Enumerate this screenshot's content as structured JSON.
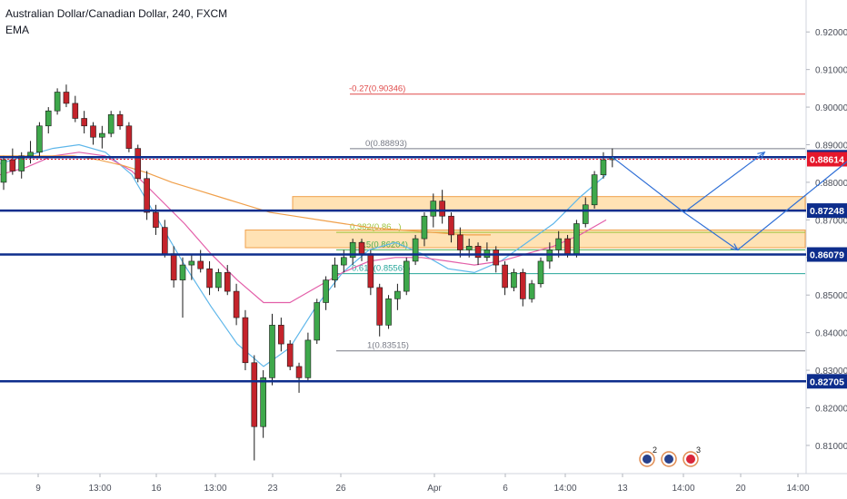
{
  "header": {
    "symbol_line": "Australian Dollar/Canadian Dollar, 240, FXCM",
    "indicator": "EMA"
  },
  "chart_data": {
    "type": "candlestick",
    "y_range": [
      0.8025,
      0.9285
    ],
    "price_ticks": [
      "0.92000",
      "0.91000",
      "0.90000",
      "0.89000",
      "0.88000",
      "0.87000",
      "0.86000",
      "0.85000",
      "0.84000",
      "0.83000",
      "0.82000",
      "0.81000"
    ],
    "date_ticks": [
      "9",
      "13:00",
      "16",
      "13:00",
      "23",
      "26",
      "Apr",
      "6",
      "14:00",
      "13",
      "14:00",
      "20",
      "14:00"
    ],
    "horizontal_levels": [
      {
        "label": "0.88667",
        "price": 0.88667,
        "color": "#0d2d8c",
        "style": "solid"
      },
      {
        "label": "0.88614",
        "price": 0.88614,
        "color": "#e5172b",
        "style": "dotted"
      },
      {
        "label": "0.87248",
        "price": 0.87248,
        "color": "#0d2d8c",
        "style": "solid"
      },
      {
        "label": "0.86079",
        "price": 0.86079,
        "color": "#0d2d8c",
        "style": "solid"
      },
      {
        "label": "0.82705",
        "price": 0.82705,
        "color": "#0d2d8c",
        "style": "solid"
      }
    ],
    "fibonacci": [
      {
        "label": "-0.27(0.90346)",
        "price": 0.90346,
        "color": "#e04a4a"
      },
      {
        "label": "0(0.88893)",
        "price": 0.88893,
        "color": "#787b86"
      },
      {
        "label": "0.382(0.86...)",
        "price": 0.86669,
        "color": "#9ec43c"
      },
      {
        "label": "0.5(0.86204)",
        "price": 0.86204,
        "color": "#4caf50"
      },
      {
        "label": "0.618(0.85569)",
        "price": 0.85569,
        "color": "#26a69a"
      },
      {
        "label": "1(0.83515)",
        "price": 0.83515,
        "color": "#787b86"
      }
    ],
    "zones": [
      {
        "name": "upper-zone",
        "low": 0.8724,
        "high": 0.8762,
        "color": "#ffd89b"
      },
      {
        "name": "lower-zone",
        "low": 0.8626,
        "high": 0.8673,
        "color": "#ffd89b"
      }
    ],
    "candles": [
      [
        0.88,
        0.887,
        0.878,
        0.886
      ],
      [
        0.886,
        0.889,
        0.882,
        0.883
      ],
      [
        0.883,
        0.888,
        0.881,
        0.887
      ],
      [
        0.887,
        0.891,
        0.885,
        0.888
      ],
      [
        0.888,
        0.896,
        0.887,
        0.895
      ],
      [
        0.895,
        0.9,
        0.893,
        0.899
      ],
      [
        0.899,
        0.905,
        0.898,
        0.904
      ],
      [
        0.904,
        0.906,
        0.9,
        0.901
      ],
      [
        0.901,
        0.903,
        0.896,
        0.897
      ],
      [
        0.897,
        0.899,
        0.893,
        0.895
      ],
      [
        0.895,
        0.896,
        0.89,
        0.892
      ],
      [
        0.892,
        0.895,
        0.889,
        0.893
      ],
      [
        0.893,
        0.899,
        0.892,
        0.898
      ],
      [
        0.898,
        0.899,
        0.894,
        0.895
      ],
      [
        0.895,
        0.896,
        0.888,
        0.889
      ],
      [
        0.889,
        0.89,
        0.88,
        0.881
      ],
      [
        0.881,
        0.883,
        0.87,
        0.872
      ],
      [
        0.872,
        0.874,
        0.866,
        0.868
      ],
      [
        0.868,
        0.87,
        0.86,
        0.861
      ],
      [
        0.861,
        0.863,
        0.852,
        0.854
      ],
      [
        0.854,
        0.86,
        0.844,
        0.858
      ],
      [
        0.858,
        0.861,
        0.854,
        0.859
      ],
      [
        0.859,
        0.862,
        0.856,
        0.857
      ],
      [
        0.857,
        0.859,
        0.85,
        0.852
      ],
      [
        0.852,
        0.857,
        0.851,
        0.856
      ],
      [
        0.856,
        0.858,
        0.85,
        0.851
      ],
      [
        0.851,
        0.853,
        0.842,
        0.844
      ],
      [
        0.844,
        0.846,
        0.83,
        0.832
      ],
      [
        0.832,
        0.834,
        0.806,
        0.815
      ],
      [
        0.815,
        0.83,
        0.812,
        0.828
      ],
      [
        0.828,
        0.845,
        0.826,
        0.842
      ],
      [
        0.842,
        0.844,
        0.835,
        0.837
      ],
      [
        0.837,
        0.838,
        0.83,
        0.831
      ],
      [
        0.831,
        0.832,
        0.824,
        0.828
      ],
      [
        0.828,
        0.84,
        0.827,
        0.838
      ],
      [
        0.838,
        0.849,
        0.837,
        0.848
      ],
      [
        0.848,
        0.855,
        0.846,
        0.854
      ],
      [
        0.854,
        0.86,
        0.852,
        0.858
      ],
      [
        0.858,
        0.862,
        0.856,
        0.86
      ],
      [
        0.86,
        0.865,
        0.858,
        0.864
      ],
      [
        0.864,
        0.865,
        0.859,
        0.861
      ],
      [
        0.861,
        0.862,
        0.85,
        0.852
      ],
      [
        0.852,
        0.853,
        0.839,
        0.842
      ],
      [
        0.842,
        0.85,
        0.841,
        0.849
      ],
      [
        0.849,
        0.853,
        0.846,
        0.851
      ],
      [
        0.851,
        0.86,
        0.85,
        0.859
      ],
      [
        0.859,
        0.866,
        0.858,
        0.865
      ],
      [
        0.865,
        0.872,
        0.863,
        0.871
      ],
      [
        0.871,
        0.877,
        0.868,
        0.875
      ],
      [
        0.875,
        0.878,
        0.869,
        0.871
      ],
      [
        0.871,
        0.872,
        0.864,
        0.866
      ],
      [
        0.866,
        0.868,
        0.86,
        0.862
      ],
      [
        0.862,
        0.865,
        0.86,
        0.863
      ],
      [
        0.863,
        0.864,
        0.858,
        0.86
      ],
      [
        0.86,
        0.864,
        0.859,
        0.862
      ],
      [
        0.862,
        0.863,
        0.856,
        0.858
      ],
      [
        0.858,
        0.859,
        0.85,
        0.852
      ],
      [
        0.852,
        0.857,
        0.851,
        0.856
      ],
      [
        0.856,
        0.857,
        0.847,
        0.849
      ],
      [
        0.849,
        0.854,
        0.848,
        0.853
      ],
      [
        0.853,
        0.86,
        0.852,
        0.859
      ],
      [
        0.859,
        0.864,
        0.857,
        0.862
      ],
      [
        0.862,
        0.867,
        0.86,
        0.865
      ],
      [
        0.865,
        0.866,
        0.86,
        0.861
      ],
      [
        0.861,
        0.87,
        0.86,
        0.869
      ],
      [
        0.869,
        0.876,
        0.868,
        0.874
      ],
      [
        0.874,
        0.883,
        0.873,
        0.882
      ],
      [
        0.882,
        0.888,
        0.881,
        0.886
      ],
      [
        0.886,
        0.889,
        0.884,
        0.8867
      ]
    ],
    "ema_series": [
      {
        "name": "EMA fast",
        "color": "#5fb7ea",
        "values": [
          0.885,
          0.887,
          0.889,
          0.89,
          0.888,
          0.882,
          0.87,
          0.858,
          0.847,
          0.837,
          0.831,
          0.836,
          0.847,
          0.856,
          0.862,
          0.864,
          0.861,
          0.857,
          0.856,
          0.859,
          0.864,
          0.869,
          0.876,
          0.882
        ]
      },
      {
        "name": "EMA slow",
        "color": "#e35fa9",
        "values": [
          0.882,
          0.884,
          0.887,
          0.888,
          0.887,
          0.883,
          0.876,
          0.869,
          0.861,
          0.854,
          0.848,
          0.848,
          0.852,
          0.856,
          0.859,
          0.86,
          0.86,
          0.859,
          0.858,
          0.859,
          0.861,
          0.863,
          0.866,
          0.87
        ]
      },
      {
        "name": "EMA long",
        "color": "#f0a04b",
        "values": [
          0.887,
          0.887,
          0.887,
          0.887,
          0.886,
          0.8845,
          0.8825,
          0.88,
          0.878,
          0.876,
          0.874,
          0.872,
          0.871,
          0.87,
          0.869,
          0.868,
          0.8675,
          0.867,
          0.8665,
          0.866,
          0.866
        ]
      }
    ],
    "projection": [
      {
        "date_index": 68,
        "price": 0.8867
      },
      {
        "date_index": 76,
        "price": 0.872
      },
      {
        "date_index": 85,
        "price": 0.888
      },
      {
        "date_index": 76,
        "price": 0.872
      },
      {
        "date_index": 82,
        "price": 0.862
      },
      {
        "date_index": 95,
        "price": 0.887
      }
    ],
    "event_badges": [
      "2",
      "3"
    ]
  }
}
